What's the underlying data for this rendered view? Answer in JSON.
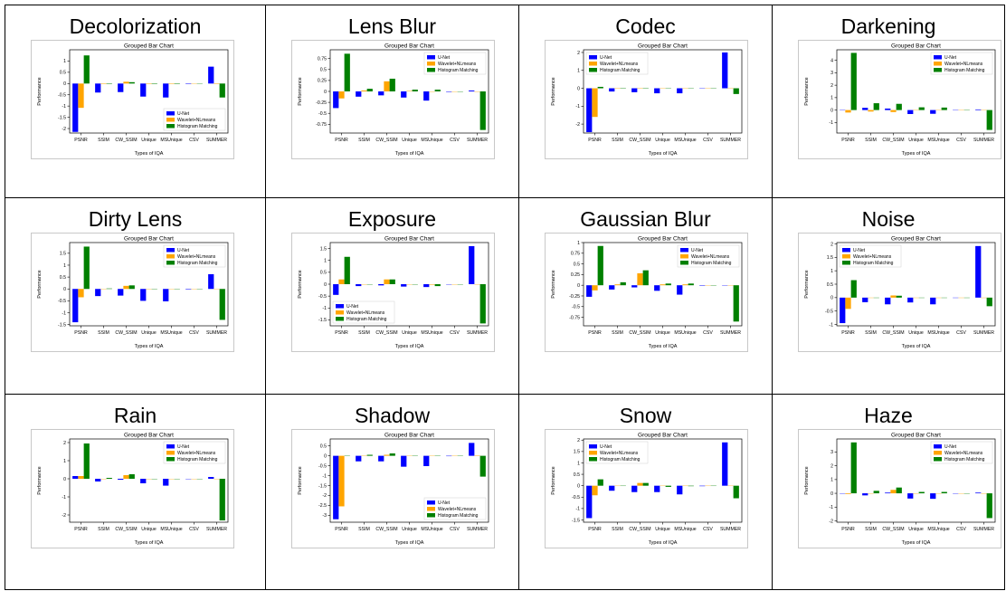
{
  "colors": {
    "unet": "#0000ff",
    "wavelet": "#ffa500",
    "histogram": "#008000"
  },
  "chart_data": [
    {
      "type": "bar",
      "title": "Grouped Bar Chart",
      "subtitle": "Decolorization",
      "xlabel": "Types of IQA",
      "ylabel": "Performance",
      "categories": [
        "PSNR",
        "SSIM",
        "CW_SSIM",
        "Unique",
        "MSUnique",
        "CSV",
        "SUMMER"
      ],
      "series": [
        {
          "name": "U-Net",
          "values": [
            -2.15,
            -0.4,
            -0.38,
            -0.58,
            -0.62,
            -0.02,
            0.75
          ]
        },
        {
          "name": "Wavelet+NLmeans",
          "values": [
            -1.08,
            -0.02,
            0.08,
            -0.02,
            -0.02,
            -0.01,
            -0.02
          ]
        },
        {
          "name": "Histogram Matching",
          "values": [
            1.25,
            -0.02,
            0.06,
            -0.02,
            -0.02,
            -0.01,
            -0.62
          ]
        }
      ],
      "ylim": [
        -2.2,
        1.5
      ],
      "yticks": [
        -2.0,
        -1.5,
        -1.0,
        -0.5,
        0.0,
        0.5,
        1.0
      ],
      "legend": "lower-right"
    },
    {
      "type": "bar",
      "title": "Grouped Bar Chart",
      "subtitle": "Lens Blur",
      "xlabel": "Types of IQA",
      "ylabel": "Performance",
      "categories": [
        "PSNR",
        "SSIM",
        "CW_SSIM",
        "Unique",
        "MSUnique",
        "CSV",
        "SUMMER"
      ],
      "series": [
        {
          "name": "U-Net",
          "values": [
            -0.38,
            -0.12,
            -0.09,
            -0.14,
            -0.21,
            -0.01,
            0.02
          ]
        },
        {
          "name": "Wavelet+NLmeans",
          "values": [
            -0.16,
            0.02,
            0.23,
            0.01,
            0.0,
            0.0,
            0.0
          ]
        },
        {
          "name": "Histogram Matching",
          "values": [
            0.86,
            0.06,
            0.29,
            0.04,
            0.04,
            0.0,
            -0.88
          ]
        }
      ],
      "ylim": [
        -0.95,
        0.95
      ],
      "yticks": [
        -0.75,
        -0.5,
        -0.25,
        0.0,
        0.25,
        0.5,
        0.75
      ],
      "legend": "upper-right"
    },
    {
      "type": "bar",
      "title": "Grouped Bar Chart",
      "subtitle": "Codec",
      "xlabel": "Types of IQA",
      "ylabel": "Performance",
      "categories": [
        "PSNR",
        "SSIM",
        "CW_SSIM",
        "Unique",
        "MSUnique",
        "CSV",
        "SUMMER"
      ],
      "series": [
        {
          "name": "U-Net",
          "values": [
            -2.45,
            -0.18,
            -0.22,
            -0.28,
            -0.28,
            -0.01,
            2.0
          ]
        },
        {
          "name": "Wavelet+NLmeans",
          "values": [
            -1.6,
            -0.02,
            0.02,
            0.0,
            0.0,
            0.0,
            0.0
          ]
        },
        {
          "name": "Histogram Matching",
          "values": [
            0.08,
            0.02,
            0.02,
            0.0,
            0.0,
            0.0,
            -0.32
          ]
        }
      ],
      "ylim": [
        -2.5,
        2.15
      ],
      "yticks": [
        -2,
        -1,
        0,
        1,
        2
      ],
      "legend": "upper-left"
    },
    {
      "type": "bar",
      "title": "Grouped Bar Chart",
      "subtitle": "Darkening",
      "xlabel": "Types of IQA",
      "ylabel": "Performance",
      "categories": [
        "PSNR",
        "SSIM",
        "CW_SSIM",
        "Unique",
        "MSUnique",
        "CSV",
        "SUMMER"
      ],
      "series": [
        {
          "name": "U-Net",
          "values": [
            0.0,
            0.18,
            0.12,
            -0.32,
            -0.3,
            -0.02,
            0.05
          ]
        },
        {
          "name": "Wavelet+NLmeans",
          "values": [
            -0.2,
            -0.12,
            -0.16,
            0.02,
            0.02,
            0.0,
            0.0
          ]
        },
        {
          "name": "Histogram Matching",
          "values": [
            4.6,
            0.55,
            0.5,
            0.22,
            0.2,
            0.0,
            -1.6
          ]
        }
      ],
      "ylim": [
        -1.85,
        4.85
      ],
      "yticks": [
        -1,
        0,
        1,
        2,
        3,
        4
      ],
      "legend": "upper-right"
    },
    {
      "type": "bar",
      "title": "Grouped Bar Chart",
      "subtitle": "Dirty Lens",
      "xlabel": "Types of IQA",
      "ylabel": "Performance",
      "categories": [
        "PSNR",
        "SSIM",
        "CW_SSIM",
        "Unique",
        "MSUnique",
        "CSV",
        "SUMMER"
      ],
      "series": [
        {
          "name": "U-Net",
          "values": [
            -1.4,
            -0.3,
            -0.28,
            -0.5,
            -0.52,
            -0.02,
            0.62
          ]
        },
        {
          "name": "Wavelet+NLmeans",
          "values": [
            -0.35,
            0.0,
            0.13,
            0.0,
            0.0,
            0.0,
            0.0
          ]
        },
        {
          "name": "Histogram Matching",
          "values": [
            1.78,
            0.02,
            0.15,
            0.0,
            0.0,
            0.0,
            -1.3
          ]
        }
      ],
      "ylim": [
        -1.55,
        1.95
      ],
      "yticks": [
        -1.5,
        -1.0,
        -0.5,
        0.0,
        0.5,
        1.0,
        1.5
      ],
      "legend": "upper-right"
    },
    {
      "type": "bar",
      "title": "Grouped Bar Chart",
      "subtitle": "Exposure",
      "xlabel": "Types of IQA",
      "ylabel": "Performance",
      "categories": [
        "PSNR",
        "SSIM",
        "CW_SSIM",
        "Unique",
        "MSUnique",
        "CSV",
        "SUMMER"
      ],
      "series": [
        {
          "name": "U-Net",
          "values": [
            -0.45,
            -0.08,
            -0.05,
            -0.1,
            -0.12,
            0.0,
            1.6
          ]
        },
        {
          "name": "Wavelet+NLmeans",
          "values": [
            0.2,
            0.0,
            0.2,
            0.0,
            -0.02,
            0.0,
            0.0
          ]
        },
        {
          "name": "Histogram Matching",
          "values": [
            1.15,
            0.0,
            0.2,
            0.0,
            -0.08,
            0.0,
            -1.65
          ]
        }
      ],
      "ylim": [
        -1.75,
        1.75
      ],
      "yticks": [
        -1.5,
        -1.0,
        -0.5,
        0.0,
        0.5,
        1.0,
        1.5
      ],
      "legend": "lower-left"
    },
    {
      "type": "bar",
      "title": "Grouped Bar Chart",
      "subtitle": "Gaussian Blur",
      "xlabel": "Types of IQA",
      "ylabel": "Performance",
      "categories": [
        "PSNR",
        "SSIM",
        "CW_SSIM",
        "Unique",
        "MSUnique",
        "CSV",
        "SUMMER"
      ],
      "series": [
        {
          "name": "U-Net",
          "values": [
            -0.27,
            -0.1,
            -0.05,
            -0.13,
            -0.22,
            -0.01,
            0.0
          ]
        },
        {
          "name": "Wavelet+NLmeans",
          "values": [
            -0.12,
            0.02,
            0.28,
            0.02,
            0.02,
            0.0,
            0.0
          ]
        },
        {
          "name": "Histogram Matching",
          "values": [
            0.92,
            0.07,
            0.35,
            0.04,
            0.04,
            0.0,
            -0.85
          ]
        }
      ],
      "ylim": [
        -0.95,
        1.0
      ],
      "yticks": [
        -0.75,
        -0.5,
        -0.25,
        0.0,
        0.25,
        0.5,
        0.75,
        1.0
      ],
      "legend": "upper-right"
    },
    {
      "type": "bar",
      "title": "Grouped Bar Chart",
      "subtitle": "Noise",
      "xlabel": "Types of IQA",
      "ylabel": "Performance",
      "categories": [
        "PSNR",
        "SSIM",
        "CW_SSIM",
        "Unique",
        "MSUnique",
        "CSV",
        "SUMMER"
      ],
      "series": [
        {
          "name": "U-Net",
          "values": [
            -0.95,
            -0.17,
            -0.25,
            -0.18,
            -0.25,
            -0.01,
            1.92
          ]
        },
        {
          "name": "Wavelet+NLmeans",
          "values": [
            -0.42,
            0.0,
            0.08,
            0.0,
            0.0,
            0.0,
            0.0
          ]
        },
        {
          "name": "Histogram Matching",
          "values": [
            0.65,
            0.0,
            0.07,
            0.0,
            0.0,
            0.0,
            -0.32
          ]
        }
      ],
      "ylim": [
        -1.05,
        2.05
      ],
      "yticks": [
        -1.0,
        -0.5,
        0.0,
        0.5,
        1.0,
        1.5,
        2.0
      ],
      "legend": "upper-left"
    },
    {
      "type": "bar",
      "title": "Grouped Bar Chart",
      "subtitle": "Rain",
      "xlabel": "Types of IQA",
      "ylabel": "Performance",
      "categories": [
        "PSNR",
        "SSIM",
        "CW_SSIM",
        "Unique",
        "MSUnique",
        "CSV",
        "SUMMER"
      ],
      "series": [
        {
          "name": "U-Net",
          "values": [
            0.15,
            -0.15,
            -0.05,
            -0.25,
            -0.38,
            -0.01,
            0.1
          ]
        },
        {
          "name": "Wavelet+NLmeans",
          "values": [
            0.15,
            0.0,
            0.2,
            0.0,
            0.0,
            0.0,
            0.0
          ]
        },
        {
          "name": "Histogram Matching",
          "values": [
            1.95,
            0.05,
            0.25,
            0.0,
            0.0,
            0.0,
            -2.3
          ]
        }
      ],
      "ylim": [
        -2.4,
        2.2
      ],
      "yticks": [
        -2,
        -1,
        0,
        1,
        2
      ],
      "legend": "upper-right"
    },
    {
      "type": "bar",
      "title": "Grouped Bar Chart",
      "subtitle": "Shadow",
      "xlabel": "Types of IQA",
      "ylabel": "Performance",
      "categories": [
        "PSNR",
        "SSIM",
        "CW_SSIM",
        "Unique",
        "MSUnique",
        "CSV",
        "SUMMER"
      ],
      "series": [
        {
          "name": "U-Net",
          "values": [
            -3.2,
            -0.28,
            -0.28,
            -0.55,
            -0.52,
            -0.02,
            0.65
          ]
        },
        {
          "name": "Wavelet+NLmeans",
          "values": [
            -2.55,
            0.0,
            0.05,
            0.0,
            0.0,
            0.0,
            0.02
          ]
        },
        {
          "name": "Histogram Matching",
          "values": [
            0.0,
            0.05,
            0.12,
            0.0,
            0.0,
            0.0,
            -1.05
          ]
        }
      ],
      "ylim": [
        -3.35,
        0.85
      ],
      "yticks": [
        -3.0,
        -2.5,
        -2.0,
        -1.5,
        -1.0,
        -0.5,
        0.0,
        0.5
      ],
      "legend": "lower-right"
    },
    {
      "type": "bar",
      "title": "Grouped Bar Chart",
      "subtitle": "Snow",
      "xlabel": "Types of IQA",
      "ylabel": "Performance",
      "categories": [
        "PSNR",
        "SSIM",
        "CW_SSIM",
        "Unique",
        "MSUnique",
        "CSV",
        "SUMMER"
      ],
      "series": [
        {
          "name": "U-Net",
          "values": [
            -1.42,
            -0.22,
            -0.28,
            -0.28,
            -0.38,
            -0.02,
            1.9
          ]
        },
        {
          "name": "Wavelet+NLmeans",
          "values": [
            -0.42,
            0.0,
            0.12,
            0.0,
            0.0,
            0.0,
            0.0
          ]
        },
        {
          "name": "Histogram Matching",
          "values": [
            0.28,
            0.0,
            0.12,
            -0.05,
            -0.02,
            0.0,
            -0.55
          ]
        }
      ],
      "ylim": [
        -1.6,
        2.05
      ],
      "yticks": [
        -1.5,
        -1.0,
        -0.5,
        0.0,
        0.5,
        1.0,
        1.5,
        2.0
      ],
      "legend": "upper-left"
    },
    {
      "type": "bar",
      "title": "Grouped Bar Chart",
      "subtitle": "Haze",
      "xlabel": "Types of IQA",
      "ylabel": "Performance",
      "categories": [
        "PSNR",
        "SSIM",
        "CW_SSIM",
        "Unique",
        "MSUnique",
        "CSV",
        "SUMMER"
      ],
      "series": [
        {
          "name": "U-Net",
          "values": [
            0.0,
            -0.15,
            0.05,
            -0.38,
            -0.4,
            -0.01,
            0.05
          ]
        },
        {
          "name": "Wavelet+NLmeans",
          "values": [
            -0.05,
            0.0,
            0.25,
            0.0,
            0.0,
            0.0,
            0.0
          ]
        },
        {
          "name": "Histogram Matching",
          "values": [
            3.7,
            0.18,
            0.42,
            0.1,
            0.1,
            0.0,
            -1.8
          ]
        }
      ],
      "ylim": [
        -2.1,
        3.95
      ],
      "yticks": [
        -2,
        -1,
        0,
        1,
        2,
        3
      ],
      "legend": "upper-right"
    }
  ]
}
